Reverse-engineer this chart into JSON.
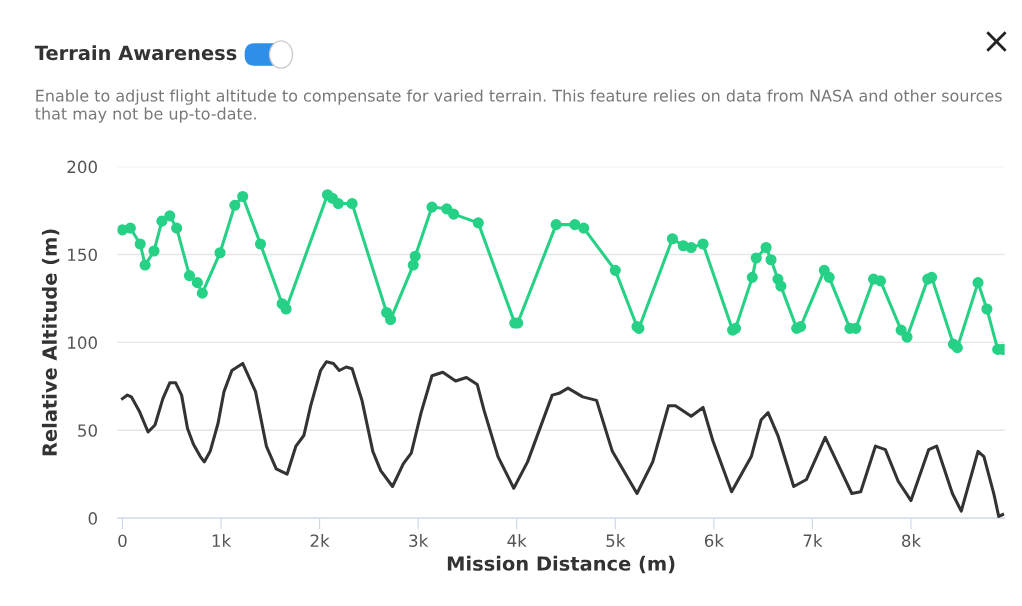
{
  "chart_data": {
    "type": "line",
    "title": "Terrain Awareness",
    "subtitle": "Enable to adjust flight altitude to compensate for varied terrain. This feature relies on data from NASA and other sources that may not be up-to-date.",
    "xlabel": "Mission Distance (m)",
    "ylabel": "Relative Altitude (m)",
    "xlim": [
      -50,
      8950
    ],
    "xticks": [
      0,
      {
        "value": 1000,
        "label": "1k"
      },
      {
        "value": 2000,
        "label": "2k"
      },
      {
        "value": 3000,
        "label": "3k"
      },
      {
        "value": 4000,
        "label": "4k"
      },
      {
        "value": 5000,
        "label": "5k"
      },
      {
        "value": 6000,
        "label": "6k"
      },
      {
        "value": 7000,
        "label": "7k"
      },
      {
        "value": 8000,
        "label": "8k"
      }
    ],
    "ylim": [
      0,
      200
    ],
    "yticks": [
      0,
      50,
      100,
      150,
      200
    ],
    "grid": "y",
    "legend": false,
    "series": [
      {
        "color": "#26d186",
        "marker": "circle",
        "x": [
          0,
          80,
          180,
          230,
          320,
          400,
          480,
          550,
          680,
          760,
          810,
          990,
          1140,
          1220,
          1400,
          1620,
          1660,
          2080,
          2130,
          2190,
          2330,
          2680,
          2720,
          2950,
          2970,
          3140,
          3290,
          3360,
          3610,
          3980,
          4010,
          4400,
          4590,
          4680,
          5000,
          5220,
          5240,
          5580,
          5690,
          5770,
          5890,
          6190,
          6220,
          6390,
          6430,
          6530,
          6580,
          6650,
          6680,
          6840,
          6880,
          7120,
          7170,
          7380,
          7440,
          7620,
          7690,
          7900,
          7960,
          8170,
          8210,
          8430,
          8470,
          8680,
          8770,
          8880,
          8930
        ],
        "values": [
          164,
          165,
          156,
          144,
          152,
          169,
          172,
          165,
          138,
          134,
          128,
          151,
          178,
          183,
          156,
          122,
          119,
          184,
          182,
          179,
          179,
          117,
          113,
          144,
          149,
          177,
          176,
          173,
          168,
          111,
          111,
          167,
          167,
          165,
          141,
          109,
          108,
          159,
          155,
          154,
          156,
          107,
          108,
          137,
          148,
          154,
          147,
          136,
          132,
          108,
          109,
          141,
          137,
          108,
          108,
          136,
          135,
          107,
          103,
          136,
          137,
          99,
          97,
          134,
          119,
          96,
          96
        ]
      },
      {
        "color": "#333333",
        "marker": "none",
        "x": [
          0,
          50,
          90,
          170,
          260,
          330,
          410,
          480,
          540,
          600,
          660,
          720,
          790,
          830,
          890,
          970,
          1030,
          1110,
          1220,
          1350,
          1460,
          1560,
          1670,
          1760,
          1840,
          1910,
          2010,
          2070,
          2140,
          2200,
          2270,
          2330,
          2430,
          2540,
          2620,
          2740,
          2850,
          2930,
          3030,
          3140,
          3250,
          3380,
          3490,
          3600,
          3670,
          3810,
          3970,
          4110,
          4360,
          4430,
          4520,
          4670,
          4810,
          4970,
          5220,
          5380,
          5540,
          5610,
          5770,
          5890,
          5990,
          6180,
          6380,
          6480,
          6550,
          6650,
          6810,
          6940,
          7130,
          7290,
          7400,
          7490,
          7640,
          7740,
          7870,
          8000,
          8180,
          8260,
          8420,
          8510,
          8680,
          8740,
          8840,
          8890,
          8930
        ],
        "values": [
          68,
          70,
          69,
          61,
          49,
          53,
          68,
          77,
          77,
          70,
          51,
          42,
          35,
          32,
          38,
          54,
          72,
          84,
          88,
          72,
          41,
          28,
          25,
          41,
          47,
          64,
          84,
          89,
          88,
          84,
          86,
          85,
          67,
          38,
          27,
          18,
          31,
          37,
          60,
          81,
          83,
          78,
          80,
          76,
          61,
          35,
          17,
          32,
          70,
          71,
          74,
          69,
          67,
          38,
          14,
          32,
          64,
          64,
          58,
          63,
          44,
          15,
          35,
          56,
          60,
          47,
          18,
          22,
          46,
          27,
          14,
          15,
          41,
          39,
          21,
          10,
          39,
          41,
          14,
          4,
          38,
          35,
          14,
          1,
          2
        ]
      }
    ]
  }
}
